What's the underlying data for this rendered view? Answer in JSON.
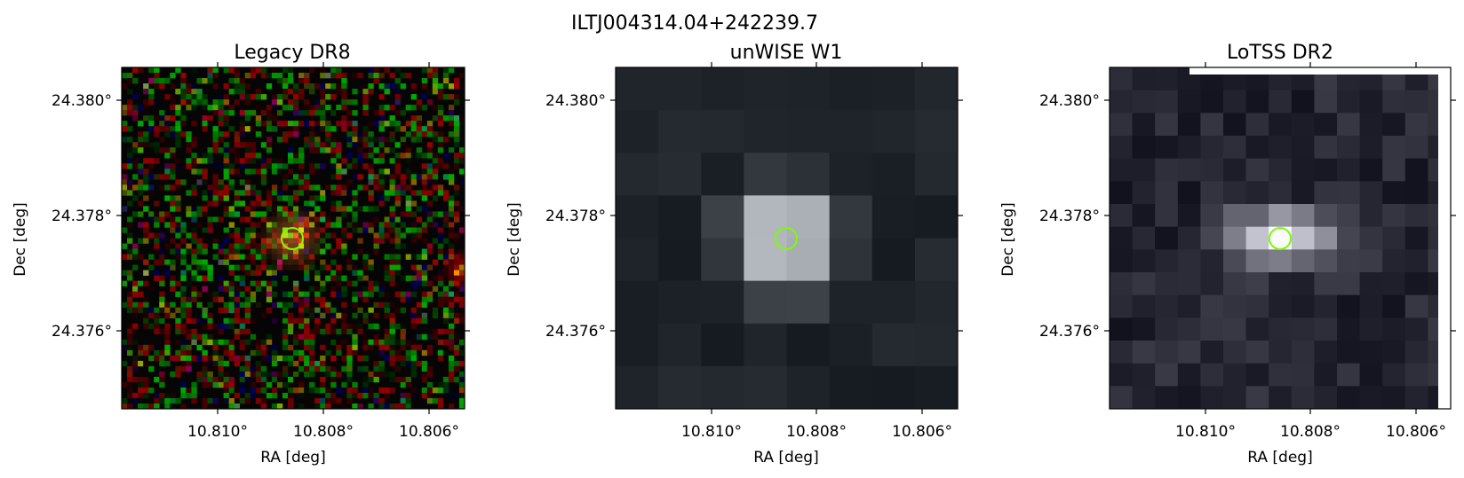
{
  "figure": {
    "title": "ILTJ004314.04+242239.7",
    "panels": [
      {
        "title": "Legacy DR8",
        "xlabel": "RA [deg]",
        "ylabel": "Dec [deg]",
        "xticks": [
          "10.810°",
          "10.808°",
          "10.806°"
        ],
        "yticks": [
          "24.380°",
          "24.378°",
          "24.376°"
        ],
        "style": "rgb-noise"
      },
      {
        "title": "unWISE W1",
        "xlabel": "RA [deg]",
        "ylabel": "Dec [deg]",
        "xticks": [
          "10.810°",
          "10.808°",
          "10.806°"
        ],
        "yticks": [
          "24.380°",
          "24.378°",
          "24.376°"
        ],
        "style": "coarse-gray"
      },
      {
        "title": "LoTSS DR2",
        "xlabel": "RA [deg]",
        "ylabel": "Dec [deg]",
        "xticks": [
          "10.810°",
          "10.808°",
          "10.806°"
        ],
        "yticks": [
          "24.380°",
          "24.378°",
          "24.376°"
        ],
        "style": "fine-gray"
      }
    ],
    "colors": {
      "marker_circle": "#7cfc00",
      "axes": "#000000",
      "background": "#ffffff"
    },
    "marker": "target-circle"
  }
}
